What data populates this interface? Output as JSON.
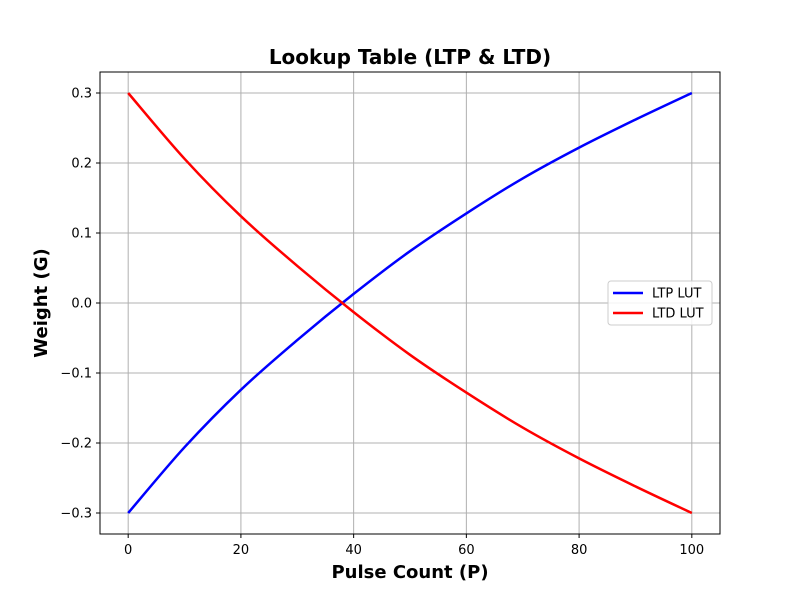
{
  "chart_data": {
    "type": "line",
    "title": "Lookup Table (LTP & LTD)",
    "xlabel": "Pulse Count (P)",
    "ylabel": "Weight (G)",
    "xlim": [
      -5,
      105
    ],
    "ylim": [
      -0.33,
      0.33
    ],
    "x_ticks": [
      0,
      20,
      40,
      60,
      80,
      100
    ],
    "x_tick_labels": [
      "0",
      "20",
      "40",
      "60",
      "80",
      "100"
    ],
    "y_ticks": [
      -0.3,
      -0.2,
      -0.1,
      0.0,
      0.1,
      0.2,
      0.3
    ],
    "y_tick_labels": [
      "−0.3",
      "−0.2",
      "−0.1",
      "0.0",
      "0.1",
      "0.2",
      "0.3"
    ],
    "grid": true,
    "legend_position": "center-right",
    "x": [
      0,
      10,
      20,
      30,
      40,
      50,
      60,
      70,
      80,
      90,
      100
    ],
    "series": [
      {
        "name": "LTP LUT",
        "color": "#0000ff",
        "values": [
          -0.3,
          -0.206,
          -0.124,
          -0.053,
          0.013,
          0.074,
          0.128,
          0.178,
          0.222,
          0.262,
          0.3
        ]
      },
      {
        "name": "LTD LUT",
        "color": "#ff0000",
        "values": [
          0.3,
          0.206,
          0.124,
          0.053,
          -0.013,
          -0.074,
          -0.128,
          -0.178,
          -0.222,
          -0.262,
          -0.3
        ]
      }
    ]
  }
}
